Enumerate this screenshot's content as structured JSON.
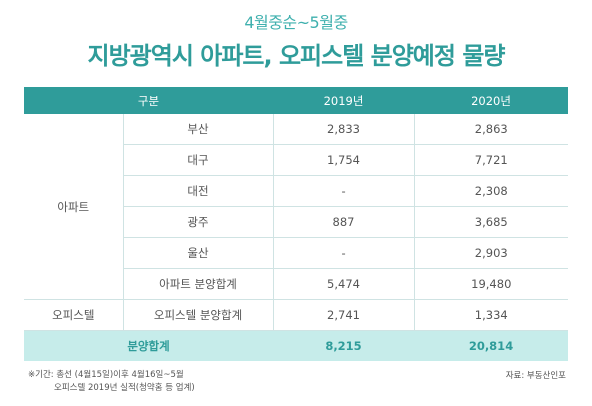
{
  "subtitle": "4월중순~5월중",
  "title": "지방광역시 아파트, 오피스텔 분양예정 물량",
  "table": {
    "headers": [
      "구분",
      "2019년",
      "2020년"
    ],
    "groups": [
      {
        "label": "아파트",
        "rows": [
          {
            "name": "부산",
            "y2019": "2,833",
            "y2020": "2,863"
          },
          {
            "name": "대구",
            "y2019": "1,754",
            "y2020": "7,721"
          },
          {
            "name": "대전",
            "y2019": "-",
            "y2020": "2,308"
          },
          {
            "name": "광주",
            "y2019": "887",
            "y2020": "3,685"
          },
          {
            "name": "울산",
            "y2019": "-",
            "y2020": "2,903"
          },
          {
            "name": "아파트 분양합계",
            "y2019": "5,474",
            "y2020": "19,480"
          }
        ]
      },
      {
        "label": "오피스텔",
        "rows": [
          {
            "name": "오피스텔 분양합계",
            "y2019": "2,741",
            "y2020": "1,334"
          }
        ]
      }
    ],
    "total": {
      "label": "분양합계",
      "y2019": "8,215",
      "y2020": "20,814"
    }
  },
  "footnote": {
    "line1": "※기간: 총선 (4월15일)이후 4월16일~5월",
    "line2": "오피스텔 2019년 실적(청약홈 등 업계)"
  },
  "source": "자료: 부동산인포"
}
